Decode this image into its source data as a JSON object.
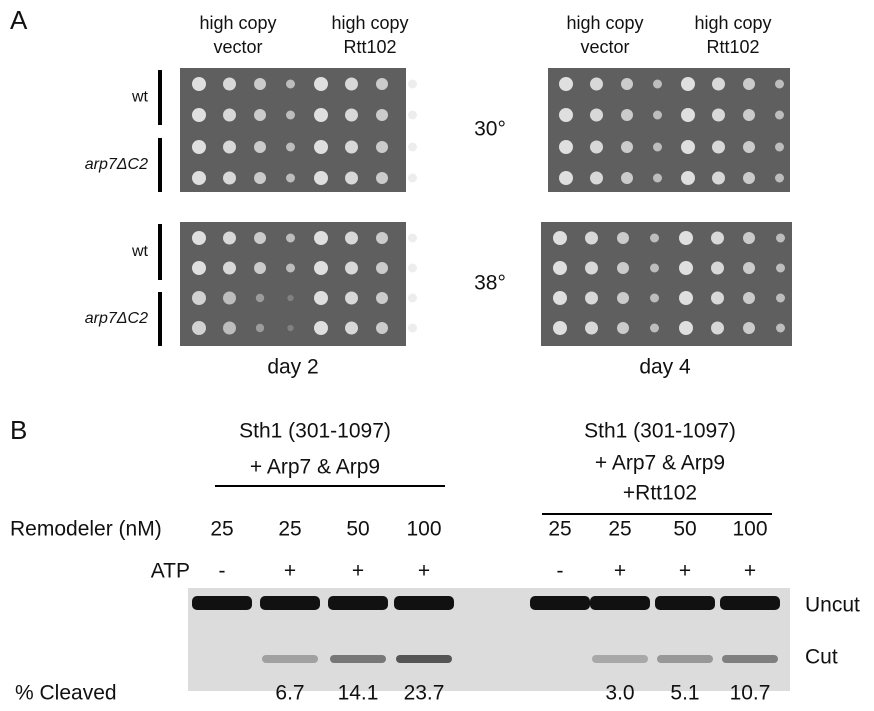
{
  "panel_a": {
    "label": "A",
    "plate_headers": [
      [
        "high copy",
        "vector"
      ],
      [
        "high copy",
        "Rtt102"
      ]
    ],
    "strains": [
      "wt",
      "arp7ΔC2"
    ],
    "temperatures": [
      "30°",
      "38°"
    ],
    "days": [
      "day 2",
      "day 4"
    ]
  },
  "panel_b": {
    "label": "B",
    "groups": [
      {
        "title_lines": [
          "Sth1 (301-1097)",
          "+ Arp7 & Arp9"
        ],
        "remodeler": [
          25,
          25,
          50,
          100
        ],
        "atp": [
          "-",
          "+",
          "+",
          "+"
        ],
        "cleaved": [
          "6.7",
          "14.1",
          "23.7"
        ]
      },
      {
        "title_lines": [
          "Sth1 (301-1097)",
          "+ Arp7 & Arp9",
          "+Rtt102"
        ],
        "remodeler": [
          25,
          25,
          50,
          100
        ],
        "atp": [
          "-",
          "+",
          "+",
          "+"
        ],
        "cleaved": [
          "3.0",
          "5.1",
          "10.7"
        ]
      }
    ],
    "row_labels": {
      "remodeler": "Remodeler (nM)",
      "atp": "ATP",
      "cleaved": "% Cleaved"
    },
    "band_labels": [
      "Uncut",
      "Cut"
    ]
  }
}
